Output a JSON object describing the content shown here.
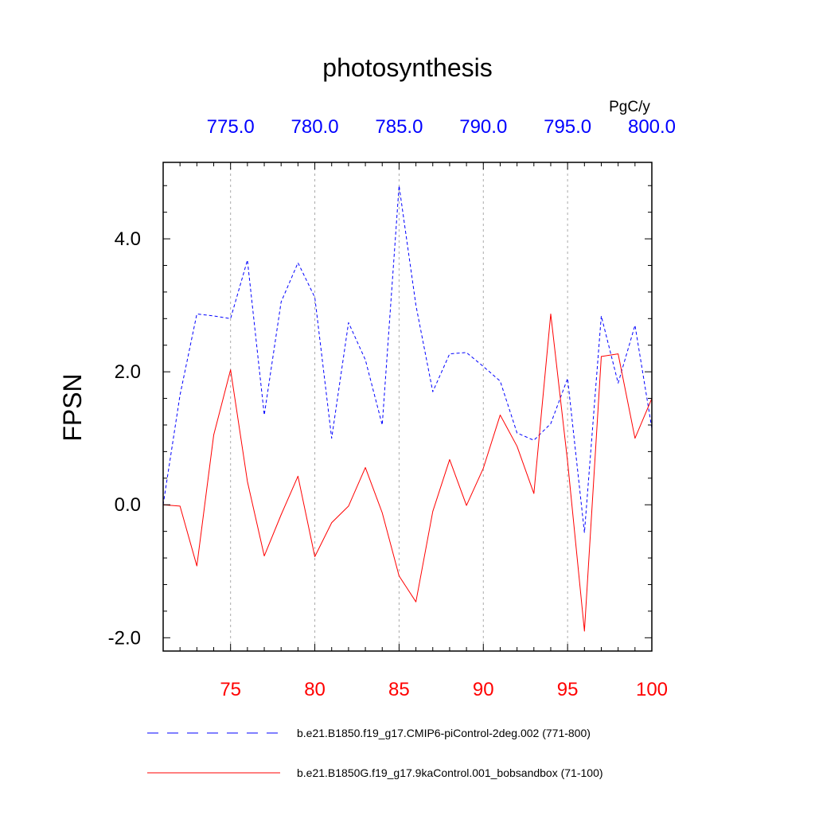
{
  "chart_data": {
    "type": "line",
    "title": "photosynthesis",
    "ylabel": "FPSN",
    "units": "PgC/y",
    "ylim": [
      -2.2,
      5.15
    ],
    "yticks": [
      -2.0,
      0.0,
      2.0,
      4.0
    ],
    "ytick_labels": [
      "-2.0",
      "0.0",
      "2.0",
      "4.0"
    ],
    "y_minor_step": 0.4,
    "grid": "vertical dashed at major x ticks",
    "bottom_axis": {
      "color": "#ff0000",
      "range": [
        71,
        100
      ],
      "ticks": [
        75,
        80,
        85,
        90,
        95,
        100
      ],
      "tick_labels": [
        "75",
        "80",
        "85",
        "90",
        "95",
        "100"
      ]
    },
    "top_axis": {
      "color": "#0000ff",
      "range": [
        771,
        800
      ],
      "ticks": [
        775,
        780,
        785,
        790,
        795,
        800
      ],
      "tick_labels": [
        "775.0",
        "780.0",
        "785.0",
        "790.0",
        "795.0",
        "800.0"
      ]
    },
    "series": [
      {
        "name": "b.e21.B1850.f19_g17.CMIP6-piControl-2deg.002 (771-800)",
        "axis": "top",
        "color": "#0000ff",
        "style": "dashed",
        "x": [
          771,
          772,
          773,
          774,
          775,
          776,
          777,
          778,
          779,
          780,
          781,
          782,
          783,
          784,
          785,
          786,
          787,
          788,
          789,
          790,
          791,
          792,
          793,
          794,
          795,
          796,
          797,
          798,
          799,
          800
        ],
        "values": [
          0.0,
          1.65,
          2.87,
          2.84,
          2.8,
          3.68,
          1.35,
          3.05,
          3.64,
          3.12,
          1.0,
          2.74,
          2.18,
          1.2,
          4.8,
          3.0,
          1.7,
          2.27,
          2.29,
          2.08,
          1.86,
          1.08,
          0.97,
          1.22,
          1.9,
          -0.42,
          2.84,
          1.83,
          2.7,
          1.15
        ]
      },
      {
        "name": "b.e21.B1850G.f19_g17.9kaControl.001_bobsandbox (71-100)",
        "axis": "bottom",
        "color": "#ff0000",
        "style": "solid",
        "x": [
          71,
          72,
          73,
          74,
          75,
          76,
          77,
          78,
          79,
          80,
          81,
          82,
          83,
          84,
          85,
          86,
          87,
          88,
          89,
          90,
          91,
          92,
          93,
          94,
          95,
          96,
          97,
          98,
          99,
          100
        ],
        "values": [
          0.0,
          -0.02,
          -0.92,
          1.05,
          2.03,
          0.35,
          -0.77,
          -0.15,
          0.43,
          -0.78,
          -0.27,
          -0.02,
          0.56,
          -0.12,
          -1.07,
          -1.46,
          -0.1,
          0.68,
          -0.01,
          0.55,
          1.35,
          0.88,
          0.17,
          2.87,
          0.65,
          -1.9,
          2.23,
          2.27,
          1.0,
          1.6
        ]
      }
    ]
  }
}
